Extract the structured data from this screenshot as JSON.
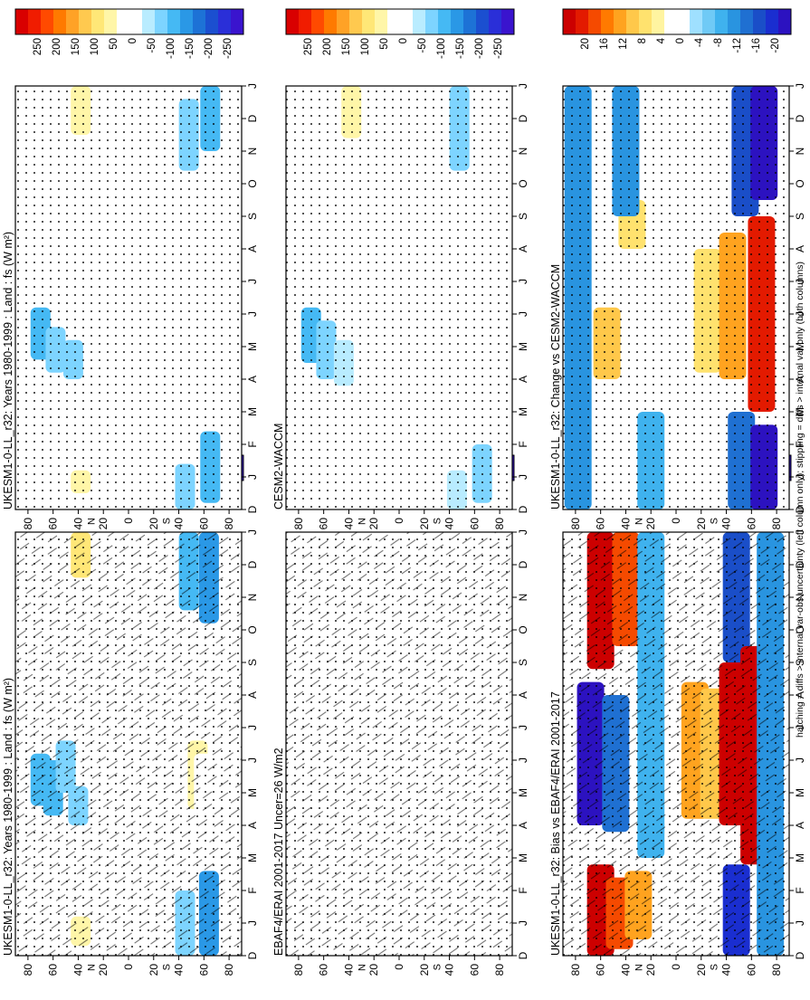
{
  "footer_note": "hatching = diffs > internal var-obs uncertainty (left column only); stippling = diffs > internal var only (both columns)",
  "palettes": {
    "wm2": [
      "#d90000",
      "#f01c00",
      "#ff4a00",
      "#ff7a00",
      "#ffa226",
      "#ffc94f",
      "#ffe777",
      "#fff6a8",
      "#ffffff",
      "#ffffff",
      "#b9ecff",
      "#7dd4ff",
      "#45b9f4",
      "#2a98e6",
      "#1d72d6",
      "#1b4fd0",
      "#2a2fd8",
      "#3a14ce"
    ],
    "diff": [
      "#cc0000",
      "#e31a00",
      "#f54a00",
      "#ff7a00",
      "#ffa31f",
      "#ffc84a",
      "#ffe26e",
      "#fff4a0",
      "#ffffff",
      "#ffffff",
      "#9fe0ff",
      "#6fcaf6",
      "#3fb2ee",
      "#2994e0",
      "#1f70d2",
      "#1a4ec8",
      "#1a2ed0",
      "#2c12c0"
    ]
  },
  "chart_data": [
    {
      "type": "heatmap",
      "title": "UKESM1-0-LL_r32: Years 1980-1999 : Land : fs (W m²)",
      "months": [
        "D",
        "J",
        "F",
        "M",
        "A",
        "M",
        "J",
        "J",
        "A",
        "S",
        "O",
        "N",
        "D",
        "J"
      ],
      "lat_ticks": [
        "80",
        "60",
        "40",
        "20",
        "0",
        "20",
        "40",
        "60",
        "80"
      ],
      "lat_hemi": [
        "N",
        "S"
      ],
      "colorbar_labels": [
        "250",
        "200",
        "150",
        "100",
        "50",
        "0",
        "-50",
        "-100",
        "-150",
        "-200",
        "-250"
      ],
      "hatching": true,
      "stippling": true,
      "blobs": [
        {
          "lat": 70,
          "m0": 4.6,
          "m1": 6.2,
          "val": -110
        },
        {
          "lat": 60,
          "m0": 4.3,
          "m1": 6.0,
          "val": -90
        },
        {
          "lat": 50,
          "m0": 5.0,
          "m1": 6.6,
          "val": -80
        },
        {
          "lat": 40,
          "m0": 4.0,
          "m1": 5.2,
          "val": -60
        },
        {
          "lat": 38,
          "m0": 0.3,
          "m1": 1.2,
          "val": 60
        },
        {
          "lat": 38,
          "m0": 11.6,
          "m1": 13.0,
          "val": 70
        },
        {
          "lat": 72,
          "m0": 10.5,
          "m1": 11.2,
          "val": 30
        },
        {
          "lat": -45,
          "m0": 0.0,
          "m1": 2.0,
          "val": -80
        },
        {
          "lat": -48,
          "m0": 10.6,
          "m1": 13.0,
          "val": -90
        },
        {
          "lat": -55,
          "m0": 4.5,
          "m1": 6.6,
          "val": 40
        },
        {
          "lat": -60,
          "m0": 4.0,
          "m1": 6.2,
          "val": 25
        },
        {
          "lat": -64,
          "m0": 0.0,
          "m1": 2.6,
          "val": -120
        },
        {
          "lat": -64,
          "m0": 10.2,
          "m1": 13.0,
          "val": -120
        }
      ]
    },
    {
      "type": "heatmap",
      "title": "UKESM1-0-LL_r32: Years 1980-1999 : Land : fs (W m²)",
      "months": [
        "D",
        "J",
        "F",
        "M",
        "A",
        "M",
        "J",
        "J",
        "A",
        "S",
        "O",
        "N",
        "D",
        "J"
      ],
      "lat_ticks": [
        "80",
        "60",
        "40",
        "20",
        "0",
        "20",
        "40",
        "60",
        "80"
      ],
      "lat_hemi": [
        "N",
        "S"
      ],
      "colorbar_labels": [
        "250",
        "200",
        "150",
        "100",
        "50",
        "0",
        "-50",
        "-100",
        "-150",
        "-200",
        "-250"
      ],
      "hatching": false,
      "stippling": true,
      "blobs": [
        {
          "lat": 70,
          "m0": 4.6,
          "m1": 6.2,
          "val": -90
        },
        {
          "lat": 58,
          "m0": 4.2,
          "m1": 5.6,
          "val": -70
        },
        {
          "lat": 44,
          "m0": 4.0,
          "m1": 5.2,
          "val": -60
        },
        {
          "lat": 38,
          "m0": 0.5,
          "m1": 1.2,
          "val": 40
        },
        {
          "lat": 38,
          "m0": 11.5,
          "m1": 13.0,
          "val": 40
        },
        {
          "lat": 72,
          "m0": 10.6,
          "m1": 11.2,
          "val": 25
        },
        {
          "lat": -48,
          "m0": 10.4,
          "m1": 12.6,
          "val": -80
        },
        {
          "lat": -45,
          "m0": 0.0,
          "m1": 1.4,
          "val": -60
        },
        {
          "lat": -55,
          "m0": 4.5,
          "m1": 6.4,
          "val": 25
        },
        {
          "lat": -65,
          "m0": 0.2,
          "m1": 2.4,
          "val": -100
        },
        {
          "lat": -65,
          "m0": 11.0,
          "m1": 13.0,
          "val": -100
        }
      ]
    },
    {
      "type": "heatmap",
      "title": "EBAF4/ERAI 2001-2017 Uncer=26 W/m2",
      "months": [
        "D",
        "J",
        "F",
        "M",
        "A",
        "M",
        "J",
        "J",
        "A",
        "S",
        "O",
        "N",
        "D",
        "J"
      ],
      "lat_ticks": [
        "80",
        "60",
        "40",
        "20",
        "0",
        "20",
        "40",
        "60",
        "80"
      ],
      "lat_hemi": [
        "N",
        "S"
      ],
      "colorbar_labels": [
        "250",
        "200",
        "150",
        "100",
        "50",
        "0",
        "-50",
        "-100",
        "-150",
        "-200",
        "-250"
      ],
      "hatching": true,
      "stippling": true,
      "blobs": []
    },
    {
      "type": "heatmap",
      "title": "CESM2-WACCM",
      "months": [
        "D",
        "J",
        "F",
        "M",
        "A",
        "M",
        "J",
        "J",
        "A",
        "S",
        "O",
        "N",
        "D",
        "J"
      ],
      "lat_ticks": [
        "80",
        "60",
        "40",
        "20",
        "0",
        "20",
        "40",
        "60",
        "80"
      ],
      "lat_hemi": [
        "N",
        "S"
      ],
      "colorbar_labels": [
        "250",
        "200",
        "150",
        "100",
        "50",
        "0",
        "-50",
        "-100",
        "-150",
        "-200",
        "-250"
      ],
      "hatching": false,
      "stippling": true,
      "blobs": [
        {
          "lat": 70,
          "m0": 4.5,
          "m1": 6.2,
          "val": -90
        },
        {
          "lat": 58,
          "m0": 4.0,
          "m1": 5.8,
          "val": -70
        },
        {
          "lat": 44,
          "m0": 3.8,
          "m1": 5.2,
          "val": -50
        },
        {
          "lat": 38,
          "m0": 0.6,
          "m1": 1.2,
          "val": 30
        },
        {
          "lat": 38,
          "m0": 11.4,
          "m1": 13.0,
          "val": 40
        },
        {
          "lat": -48,
          "m0": 10.4,
          "m1": 13.0,
          "val": -60
        },
        {
          "lat": -46,
          "m0": 0.0,
          "m1": 1.2,
          "val": -50
        },
        {
          "lat": -54,
          "m0": 4.5,
          "m1": 6.5,
          "val": 25
        },
        {
          "lat": -66,
          "m0": 0.2,
          "m1": 2.0,
          "val": -60
        }
      ]
    },
    {
      "type": "heatmap",
      "title": "UKESM1-0-LL_r32: Bias vs EBAF4/ERAI 2001-2017",
      "months": [
        "D",
        "J",
        "F",
        "M",
        "A",
        "M",
        "J",
        "J",
        "A",
        "S",
        "O",
        "N",
        "D",
        "J"
      ],
      "lat_ticks": [
        "80",
        "60",
        "40",
        "20",
        "0",
        "20",
        "40",
        "60",
        "80"
      ],
      "lat_hemi": [
        "N",
        "S"
      ],
      "colorbar_labels": [
        "20",
        "16",
        "12",
        "8",
        "4",
        "0",
        "-4",
        "-8",
        "-12",
        "-16",
        "-20"
      ],
      "hatching": true,
      "stippling": true,
      "blobs": [
        {
          "lat": 60,
          "m0": 0.0,
          "m1": 2.8,
          "val": 20
        },
        {
          "lat": 45,
          "m0": 0.2,
          "m1": 2.4,
          "val": 16
        },
        {
          "lat": 30,
          "m0": 0.5,
          "m1": 2.6,
          "val": 10
        },
        {
          "lat": 60,
          "m0": 8.8,
          "m1": 13.0,
          "val": 20
        },
        {
          "lat": 40,
          "m0": 9.5,
          "m1": 13.0,
          "val": 16
        },
        {
          "lat": 68,
          "m0": 4.0,
          "m1": 8.4,
          "val": -20
        },
        {
          "lat": 48,
          "m0": 3.8,
          "m1": 8.0,
          "val": -14
        },
        {
          "lat": 20,
          "m0": 3.0,
          "m1": 13.0,
          "val": -8
        },
        {
          "lat": -15,
          "m0": 4.2,
          "m1": 8.4,
          "val": 12
        },
        {
          "lat": -30,
          "m0": 4.2,
          "m1": 8.2,
          "val": 8
        },
        {
          "lat": -45,
          "m0": 4.0,
          "m1": 9.0,
          "val": 20
        },
        {
          "lat": -48,
          "m0": 9.0,
          "m1": 13.0,
          "val": -16
        },
        {
          "lat": -48,
          "m0": 0.0,
          "m1": 2.8,
          "val": -18
        },
        {
          "lat": -62,
          "m0": 2.8,
          "m1": 9.5,
          "val": 20
        },
        {
          "lat": -75,
          "m0": 0.0,
          "m1": 13.0,
          "val": -10
        }
      ]
    },
    {
      "type": "heatmap",
      "title": "UKESM1-0-LL_r32: Change vs CESM2-WACCM",
      "months": [
        "D",
        "J",
        "F",
        "M",
        "A",
        "M",
        "J",
        "J",
        "A",
        "S",
        "O",
        "N",
        "D",
        "J"
      ],
      "lat_ticks": [
        "80",
        "60",
        "40",
        "20",
        "0",
        "20",
        "40",
        "60",
        "80"
      ],
      "lat_hemi": [
        "N",
        "S"
      ],
      "colorbar_labels": [
        "20",
        "16",
        "12",
        "8",
        "4",
        "0",
        "-4",
        "-8",
        "-12",
        "-16",
        "-20"
      ],
      "hatching": false,
      "stippling": true,
      "blobs": [
        {
          "lat": 78,
          "m0": 0.0,
          "m1": 13.0,
          "val": -12
        },
        {
          "lat": 55,
          "m0": 4.0,
          "m1": 6.2,
          "val": 8
        },
        {
          "lat": 35,
          "m0": 8.0,
          "m1": 9.5,
          "val": 6
        },
        {
          "lat": 40,
          "m0": 9.0,
          "m1": 13.0,
          "val": -10
        },
        {
          "lat": 20,
          "m0": 0.0,
          "m1": 3.0,
          "val": -8
        },
        {
          "lat": -25,
          "m0": 4.2,
          "m1": 8.0,
          "val": 6
        },
        {
          "lat": -45,
          "m0": 4.0,
          "m1": 8.5,
          "val": 12
        },
        {
          "lat": -52,
          "m0": 0.0,
          "m1": 3.0,
          "val": -14
        },
        {
          "lat": -55,
          "m0": 9.0,
          "m1": 13.0,
          "val": -16
        },
        {
          "lat": -68,
          "m0": 3.0,
          "m1": 9.0,
          "val": 18
        },
        {
          "lat": -70,
          "m0": 0.0,
          "m1": 2.6,
          "val": -20
        },
        {
          "lat": -70,
          "m0": 9.5,
          "m1": 13.0,
          "val": -20
        }
      ]
    }
  ]
}
